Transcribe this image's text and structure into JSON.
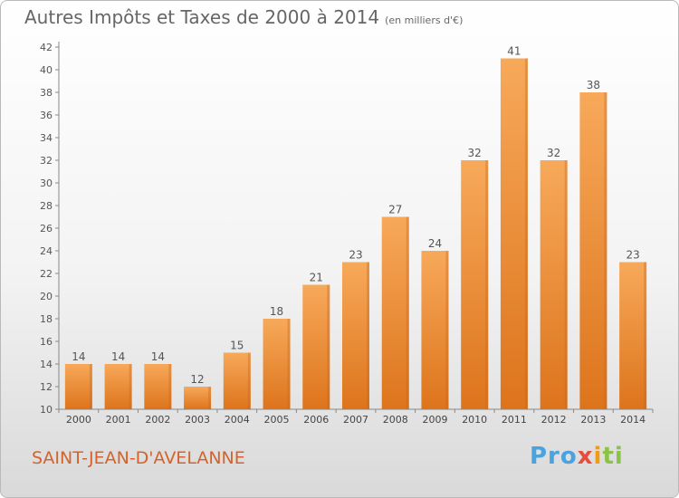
{
  "title": "Autres Impôts et Taxes de 2000 à 2014",
  "subtitle": "(en milliers d'€)",
  "commune": "SAINT-JEAN-D'AVELANNE",
  "logo": {
    "part1": "Pro",
    "part2": "x",
    "part3": "i",
    "part4": "ti"
  },
  "colors": {
    "bar_light": "#f7a95a",
    "bar_dark": "#e0761f",
    "text": "#666666",
    "commune": "#d4622a"
  },
  "chart_data": {
    "type": "bar",
    "categories": [
      "2000",
      "2001",
      "2002",
      "2003",
      "2004",
      "2005",
      "2006",
      "2007",
      "2008",
      "2009",
      "2010",
      "2011",
      "2012",
      "2013",
      "2014"
    ],
    "values": [
      14,
      14,
      14,
      12,
      15,
      18,
      21,
      23,
      27,
      24,
      32,
      41,
      32,
      38,
      23
    ],
    "title": "Autres Impôts et Taxes de 2000 à 2014",
    "subtitle": "(en milliers d'€)",
    "xlabel": "",
    "ylabel": "",
    "ylim": [
      10,
      42
    ],
    "yticks": [
      10,
      12,
      14,
      16,
      18,
      20,
      22,
      24,
      26,
      28,
      30,
      32,
      34,
      36,
      38,
      40,
      42
    ],
    "grid": false,
    "data_labels": true
  }
}
